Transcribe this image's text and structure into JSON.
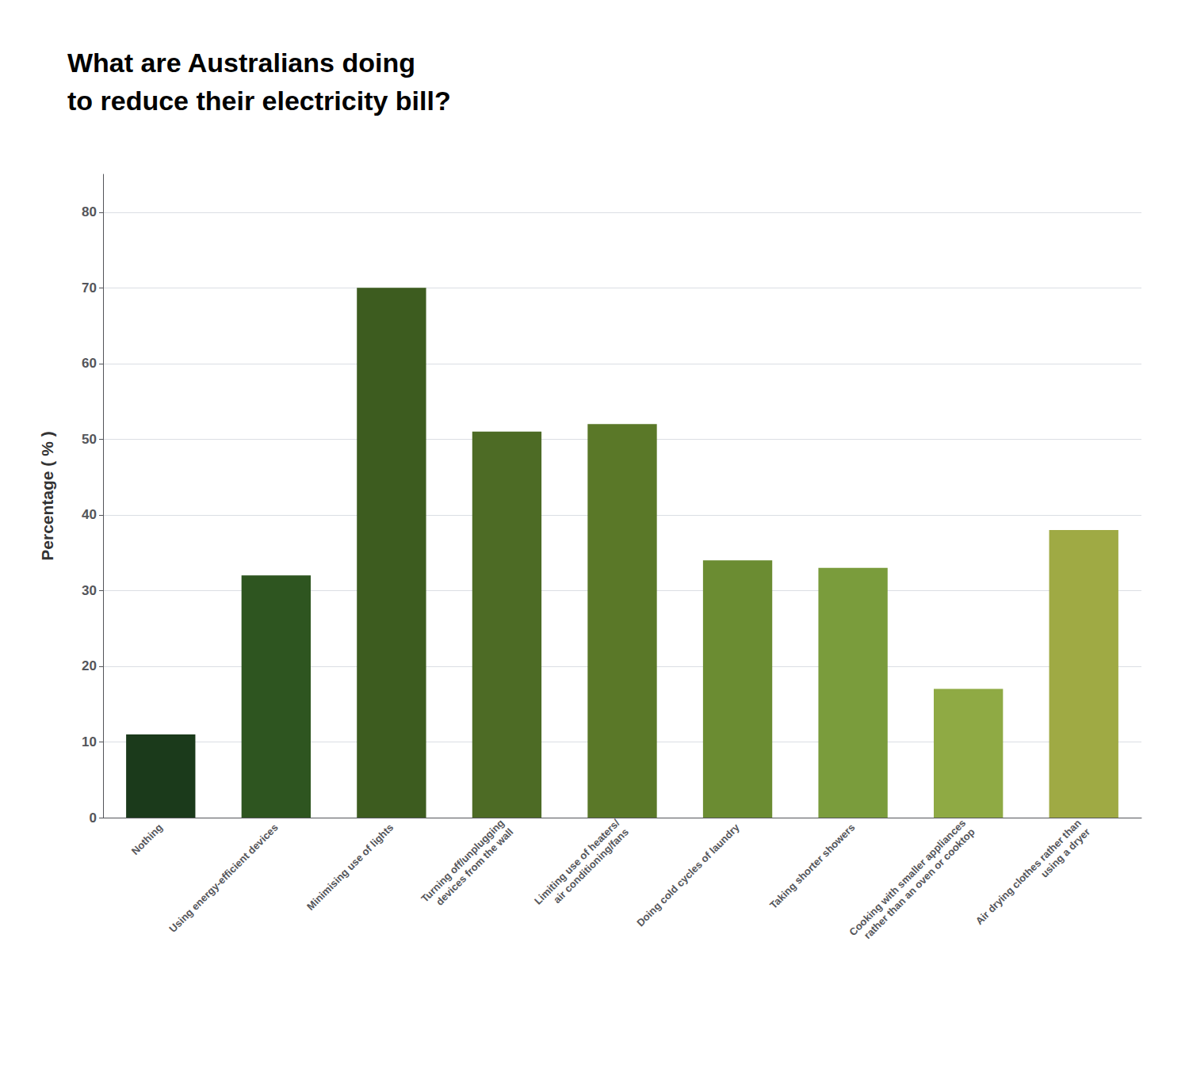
{
  "chart_data": {
    "type": "bar",
    "title": "What are Australians doing\nto reduce their electricity bill?",
    "ylabel": "Percentage ( % )",
    "categories": [
      "Nothing",
      "Using energy-efficient devices",
      "Minimising use of lights",
      "Turning off/unplugging\ndevices from the wall",
      "Limiting use of heaters/\nair conditioning/fans",
      "Doing cold cycles of laundry",
      "Taking shorter showers",
      "Cooking with smaller appliances\nrather than an oven or cooktop",
      "Air drying clothes rather than\nusing a dryer"
    ],
    "values": [
      11,
      32,
      70,
      51,
      52,
      34,
      33,
      17,
      38
    ],
    "colors": [
      "#1b3a1b",
      "#2e5520",
      "#3d5c1f",
      "#4d6b25",
      "#5a7828",
      "#6b8c32",
      "#7a9c3c",
      "#8faa44",
      "#9faa44"
    ],
    "ylim": [
      0,
      85
    ],
    "yticks": [
      0,
      10,
      20,
      30,
      40,
      50,
      60,
      70,
      80
    ],
    "grid": true
  }
}
